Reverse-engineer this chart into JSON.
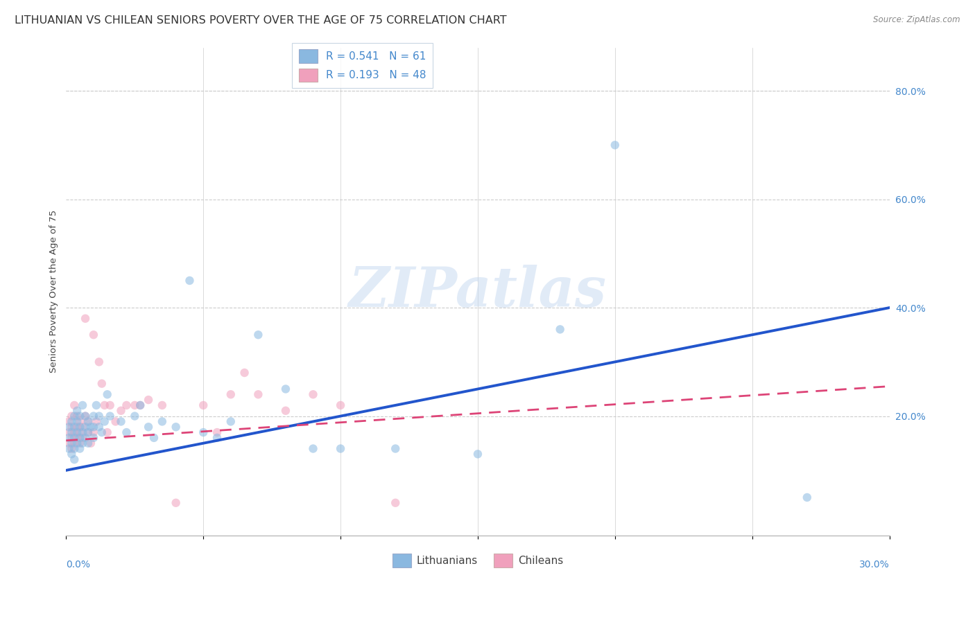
{
  "title": "LITHUANIAN VS CHILEAN SENIORS POVERTY OVER THE AGE OF 75 CORRELATION CHART",
  "source": "Source: ZipAtlas.com",
  "ylabel": "Seniors Poverty Over the Age of 75",
  "ytick_values": [
    0.0,
    0.2,
    0.4,
    0.6,
    0.8
  ],
  "ytick_labels": [
    "",
    "20.0%",
    "40.0%",
    "60.0%",
    "80.0%"
  ],
  "xlim": [
    0.0,
    0.3
  ],
  "ylim": [
    -0.02,
    0.88
  ],
  "watermark": "ZIPatlas",
  "blue_color": "#8ab8e0",
  "pink_color": "#f0a0bc",
  "blue_line_color": "#2255cc",
  "pink_line_color": "#dd4477",
  "blue_line_x": [
    0.0,
    0.3
  ],
  "blue_line_y": [
    0.1,
    0.4
  ],
  "pink_line_x": [
    0.0,
    0.3
  ],
  "pink_line_y": [
    0.155,
    0.255
  ],
  "grid_color": "#cccccc",
  "background_color": "#ffffff",
  "title_color": "#333333",
  "axis_color": "#4488cc",
  "title_fontsize": 11.5,
  "label_fontsize": 9.5,
  "tick_fontsize": 10,
  "lit_x": [
    0.001,
    0.001,
    0.001,
    0.002,
    0.002,
    0.002,
    0.002,
    0.003,
    0.003,
    0.003,
    0.003,
    0.003,
    0.004,
    0.004,
    0.004,
    0.004,
    0.005,
    0.005,
    0.005,
    0.005,
    0.006,
    0.006,
    0.006,
    0.007,
    0.007,
    0.007,
    0.008,
    0.008,
    0.008,
    0.009,
    0.01,
    0.01,
    0.01,
    0.011,
    0.012,
    0.012,
    0.013,
    0.014,
    0.015,
    0.016,
    0.02,
    0.022,
    0.025,
    0.027,
    0.03,
    0.032,
    0.035,
    0.04,
    0.045,
    0.05,
    0.055,
    0.06,
    0.07,
    0.08,
    0.09,
    0.1,
    0.12,
    0.15,
    0.18,
    0.2,
    0.27
  ],
  "lit_y": [
    0.14,
    0.16,
    0.18,
    0.13,
    0.15,
    0.17,
    0.19,
    0.14,
    0.16,
    0.18,
    0.2,
    0.12,
    0.15,
    0.17,
    0.19,
    0.21,
    0.14,
    0.16,
    0.18,
    0.2,
    0.15,
    0.17,
    0.22,
    0.16,
    0.18,
    0.2,
    0.15,
    0.17,
    0.19,
    0.18,
    0.16,
    0.18,
    0.2,
    0.22,
    0.18,
    0.2,
    0.17,
    0.19,
    0.24,
    0.2,
    0.19,
    0.17,
    0.2,
    0.22,
    0.18,
    0.16,
    0.19,
    0.18,
    0.45,
    0.17,
    0.16,
    0.19,
    0.35,
    0.25,
    0.14,
    0.14,
    0.14,
    0.13,
    0.36,
    0.7,
    0.05
  ],
  "chil_x": [
    0.001,
    0.001,
    0.001,
    0.002,
    0.002,
    0.002,
    0.002,
    0.003,
    0.003,
    0.003,
    0.004,
    0.004,
    0.004,
    0.005,
    0.005,
    0.005,
    0.006,
    0.006,
    0.007,
    0.007,
    0.008,
    0.008,
    0.009,
    0.01,
    0.01,
    0.011,
    0.012,
    0.013,
    0.014,
    0.015,
    0.016,
    0.018,
    0.02,
    0.022,
    0.025,
    0.027,
    0.03,
    0.035,
    0.04,
    0.05,
    0.055,
    0.06,
    0.065,
    0.07,
    0.08,
    0.09,
    0.1,
    0.12
  ],
  "chil_y": [
    0.15,
    0.17,
    0.19,
    0.14,
    0.16,
    0.18,
    0.2,
    0.15,
    0.17,
    0.22,
    0.16,
    0.18,
    0.2,
    0.15,
    0.17,
    0.19,
    0.16,
    0.18,
    0.38,
    0.2,
    0.17,
    0.19,
    0.15,
    0.17,
    0.35,
    0.19,
    0.3,
    0.26,
    0.22,
    0.17,
    0.22,
    0.19,
    0.21,
    0.22,
    0.22,
    0.22,
    0.23,
    0.22,
    0.04,
    0.22,
    0.17,
    0.24,
    0.28,
    0.24,
    0.21,
    0.24,
    0.22,
    0.04
  ]
}
